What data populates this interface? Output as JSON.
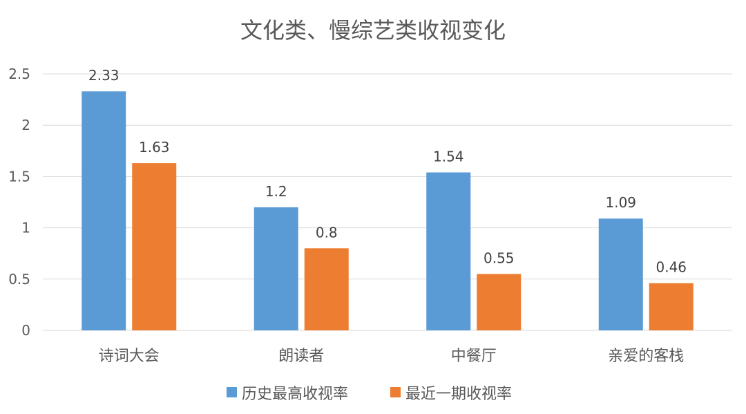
{
  "colors": {
    "series_1": "#5B9BD5",
    "series_2": "#ED7D31",
    "grid": "#D9D9D9",
    "text": "#595959"
  },
  "chart_data": {
    "type": "bar",
    "title": "文化类、慢综艺类收视变化",
    "categories": [
      "诗词大会",
      "朗读者",
      "中餐厅",
      "亲爱的客栈"
    ],
    "series": [
      {
        "name": "历史最高收视率",
        "values": [
          2.33,
          1.2,
          1.54,
          1.09
        ],
        "labels": [
          "2.33",
          "1.2",
          "1.54",
          "1.09"
        ]
      },
      {
        "name": "最近一期收视率",
        "values": [
          1.63,
          0.8,
          0.55,
          0.46
        ],
        "labels": [
          "1.63",
          "0.8",
          "0.55",
          "0.46"
        ]
      }
    ],
    "y_ticks": [
      "0",
      "0.5",
      "1",
      "1.5",
      "2",
      "2.5"
    ],
    "ylim": [
      0,
      2.5
    ],
    "xlabel": "",
    "ylabel": "",
    "grid": true,
    "legend_position": "bottom"
  }
}
